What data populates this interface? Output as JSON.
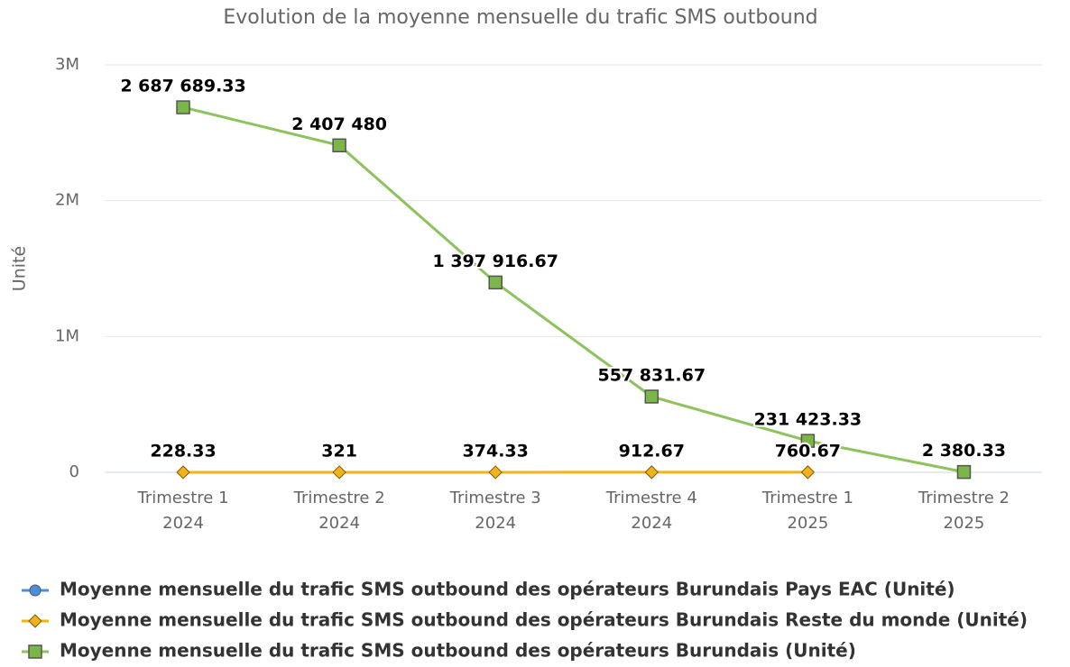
{
  "chart_data": {
    "type": "line",
    "title": "Evolution de la moyenne mensuelle du trafic SMS outbound",
    "y_label": "Unité",
    "categories": [
      "Trimestre 1 2024",
      "Trimestre 2 2024",
      "Trimestre 3 2024",
      "Trimestre 4 2024",
      "Trimestre 1 2025",
      "Trimestre 2 2025"
    ],
    "ylim": [
      0,
      3000000
    ],
    "yticks": [
      0,
      {
        "value": 1000000,
        "label": "1M"
      },
      {
        "value": 2000000,
        "label": "2M"
      },
      {
        "value": 3000000,
        "label": "3M"
      }
    ],
    "grid": true,
    "legend": "bottom",
    "series": [
      {
        "name": "Moyenne mensuelle du trafic SMS outbound des opérateurs Burundais Pays EAC (Unité)",
        "color": "#4a90d9",
        "marker": "circle",
        "values": [
          null,
          null,
          null,
          null,
          null,
          null
        ]
      },
      {
        "name": "Moyenne mensuelle du trafic SMS outbound des opérateurs Burundais Reste du monde (Unité)",
        "color": "#f2b21c",
        "marker": "diamond",
        "values": [
          228.33,
          321,
          374.33,
          912.67,
          760.67,
          null
        ]
      },
      {
        "name": "Moyenne mensuelle du trafic SMS outbound des opérateurs Burundais (Unité)",
        "color": "#8cc35c",
        "marker": "square",
        "values": [
          2687689.33,
          2407480,
          1397916.67,
          557831.67,
          231423.33,
          2380.33
        ],
        "value_labels": [
          "2 687 689.33",
          "2 407 480",
          "1 397 916.67",
          "557 831.67",
          "231 423.33",
          "2 380.33"
        ]
      }
    ]
  }
}
